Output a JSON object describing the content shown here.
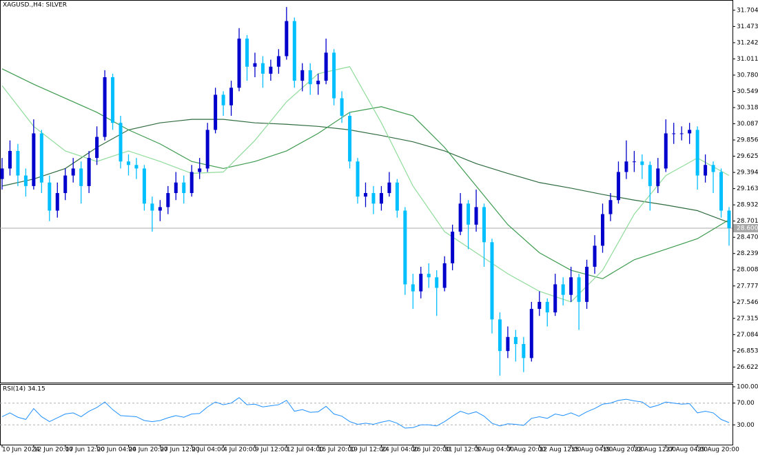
{
  "chart_data": [
    {
      "type": "candlestick",
      "title": "XAGUSD.,H4:  SILVER",
      "categories": [
        "10 Jun 2024",
        null,
        null,
        null,
        "12 Jun 20:00",
        null,
        null,
        null,
        "17 Jun 12:00",
        null,
        null,
        null,
        "20 Jun 04:00",
        null,
        null,
        null,
        "24 Jun 20:00",
        null,
        null,
        null,
        "27 Jun 12:00",
        null,
        null,
        null,
        "2 Jul 04:00",
        null,
        null,
        null,
        "4 Jul 20:00",
        null,
        null,
        null,
        "9 Jul 12:00",
        null,
        null,
        null,
        "12 Jul 04:00",
        null,
        null,
        null,
        "16 Jul 20:00",
        null,
        null,
        null,
        "19 Jul 12:00",
        null,
        null,
        null,
        "24 Jul 04:00",
        null,
        null,
        null,
        "26 Jul 20:00",
        null,
        null,
        null,
        "31 Jul 12:00",
        null,
        null,
        null,
        "5 Aug 04:00",
        null,
        null,
        null,
        "7 Aug 20:00",
        null,
        null,
        null,
        "12 Aug 12:00",
        null,
        null,
        null,
        "15 Aug 04:00",
        null,
        null,
        null,
        "19 Aug 20:00",
        null,
        null,
        null,
        "22 Aug 12:00",
        null,
        null,
        null,
        "27 Aug 04:00",
        null,
        null,
        null,
        "29 Aug 20:00",
        null,
        null,
        null,
        null
      ],
      "open": [
        29.3,
        29.45,
        29.7,
        29.35,
        29.2,
        29.95,
        29.25,
        28.85,
        29.1,
        29.35,
        29.45,
        29.2,
        29.6,
        29.9,
        30.75,
        30.1,
        29.55,
        29.5,
        29.45,
        28.95,
        28.85,
        28.9,
        29.1,
        29.25,
        29.1,
        29.4,
        29.45,
        30.0,
        30.5,
        30.35,
        30.6,
        31.3,
        30.9,
        30.95,
        30.8,
        30.9,
        31.05,
        31.55,
        30.7,
        30.85,
        30.65,
        30.7,
        31.1,
        30.45,
        30.2,
        29.55,
        29.05,
        29.1,
        28.95,
        29.1,
        29.25,
        28.85,
        27.8,
        27.7,
        27.95,
        27.9,
        27.75,
        28.1,
        28.55,
        28.95,
        28.65,
        28.9,
        28.4,
        27.3,
        26.85,
        27.05,
        26.95,
        26.75,
        27.45,
        27.55,
        27.4,
        27.8,
        27.65,
        27.9,
        27.55,
        28.05,
        28.35,
        28.8,
        29.0,
        29.4,
        29.55,
        29.55,
        29.5,
        29.2,
        29.45,
        29.95,
        29.95,
        29.95,
        30.0,
        29.35,
        29.5,
        29.4,
        28.85
      ],
      "high": [
        29.6,
        29.85,
        29.8,
        29.45,
        30.15,
        30.0,
        29.35,
        29.25,
        29.45,
        29.6,
        29.55,
        29.7,
        30.05,
        30.85,
        30.8,
        30.2,
        29.65,
        29.6,
        29.5,
        29.05,
        29.0,
        29.2,
        29.4,
        29.35,
        29.5,
        29.6,
        30.1,
        30.6,
        30.55,
        30.7,
        31.45,
        31.35,
        31.1,
        31.05,
        31.0,
        31.15,
        31.75,
        31.6,
        30.95,
        30.95,
        30.8,
        31.3,
        31.15,
        30.55,
        30.25,
        29.6,
        29.25,
        29.2,
        29.2,
        29.4,
        29.3,
        28.9,
        27.95,
        28.05,
        28.1,
        28.0,
        28.2,
        28.65,
        29.1,
        29.0,
        29.15,
        28.95,
        28.45,
        27.4,
        27.2,
        27.15,
        27.05,
        27.55,
        27.7,
        27.6,
        27.95,
        27.9,
        28.05,
        27.95,
        28.15,
        28.5,
        28.95,
        29.1,
        29.55,
        29.85,
        29.7,
        29.65,
        29.55,
        29.6,
        30.15,
        30.1,
        30.05,
        30.1,
        30.05,
        29.65,
        29.55,
        29.45,
        28.9
      ],
      "low": [
        29.15,
        29.35,
        29.2,
        29.05,
        29.15,
        29.1,
        28.7,
        28.75,
        29.0,
        29.25,
        28.95,
        29.1,
        29.5,
        29.85,
        30.0,
        29.45,
        29.35,
        29.3,
        28.85,
        28.55,
        28.7,
        28.8,
        29.0,
        28.95,
        29.05,
        29.3,
        29.4,
        29.95,
        30.2,
        30.2,
        30.55,
        30.7,
        30.75,
        30.6,
        30.7,
        30.8,
        31.0,
        30.6,
        30.55,
        30.5,
        30.5,
        30.65,
        30.35,
        30.1,
        29.45,
        28.95,
        28.9,
        28.8,
        28.85,
        29.05,
        28.75,
        27.65,
        27.45,
        27.6,
        27.75,
        27.35,
        27.7,
        28.0,
        28.5,
        28.3,
        28.55,
        28.05,
        27.1,
        26.5,
        26.75,
        26.7,
        26.55,
        26.7,
        27.35,
        27.2,
        27.35,
        27.5,
        27.55,
        27.15,
        27.45,
        27.95,
        28.25,
        28.7,
        28.95,
        29.3,
        29.4,
        29.3,
        28.85,
        29.1,
        29.4,
        29.8,
        29.85,
        29.8,
        29.15,
        29.25,
        29.1,
        28.75,
        28.35
      ],
      "close": [
        29.45,
        29.7,
        29.35,
        29.2,
        29.95,
        29.25,
        28.85,
        29.1,
        29.35,
        29.45,
        29.2,
        29.6,
        29.9,
        30.75,
        30.1,
        29.55,
        29.5,
        29.45,
        28.95,
        28.85,
        28.9,
        29.1,
        29.25,
        29.1,
        29.4,
        29.45,
        30.0,
        30.5,
        30.35,
        30.6,
        31.3,
        30.9,
        30.95,
        30.8,
        30.9,
        31.05,
        31.55,
        30.7,
        30.85,
        30.65,
        30.7,
        31.1,
        30.45,
        30.2,
        29.55,
        29.05,
        29.1,
        28.95,
        29.1,
        29.25,
        28.85,
        27.8,
        27.7,
        27.95,
        27.9,
        27.75,
        28.1,
        28.55,
        28.95,
        28.65,
        28.9,
        28.4,
        27.3,
        26.85,
        27.05,
        26.95,
        26.75,
        27.45,
        27.55,
        27.4,
        27.8,
        27.65,
        27.9,
        27.55,
        28.05,
        28.35,
        28.8,
        29.0,
        29.4,
        29.55,
        29.55,
        29.5,
        29.2,
        29.45,
        29.95,
        29.95,
        29.95,
        30.0,
        29.35,
        29.5,
        29.4,
        28.85,
        28.6
      ],
      "up_color": "#0000cd",
      "down_color": "#00bfff",
      "series": [
        {
          "color": "#2e6b3e",
          "x": [
            0,
            4,
            8,
            12,
            16,
            20,
            24,
            28,
            32,
            36,
            40,
            44,
            48,
            52,
            56,
            60,
            64,
            68,
            72,
            76,
            80,
            84,
            88,
            92
          ],
          "values": [
            29.2,
            29.3,
            29.45,
            29.75,
            30.0,
            30.1,
            30.15,
            30.15,
            30.1,
            30.08,
            30.05,
            30.0,
            29.92,
            29.83,
            29.7,
            29.52,
            29.38,
            29.25,
            29.17,
            29.08,
            29.0,
            28.93,
            28.85,
            28.68
          ]
        },
        {
          "color": "#3c9a4e",
          "x": [
            0,
            4,
            8,
            12,
            16,
            20,
            24,
            28,
            32,
            36,
            40,
            44,
            48,
            52,
            56,
            60,
            64,
            68,
            72,
            76,
            80,
            84,
            88,
            92
          ],
          "values": [
            30.87,
            30.65,
            30.45,
            30.25,
            30.0,
            29.8,
            29.55,
            29.45,
            29.55,
            29.7,
            29.95,
            30.25,
            30.33,
            30.2,
            29.75,
            29.2,
            28.65,
            28.25,
            28.0,
            27.88,
            28.15,
            28.3,
            28.45,
            28.72
          ]
        },
        {
          "color": "#8fdc9a",
          "x": [
            0,
            4,
            8,
            12,
            16,
            20,
            24,
            28,
            32,
            36,
            40,
            44,
            48,
            52,
            56,
            60,
            64,
            68,
            72,
            76,
            80,
            84,
            88,
            92
          ],
          "values": [
            30.63,
            30.05,
            29.7,
            29.55,
            29.7,
            29.55,
            29.38,
            29.4,
            29.85,
            30.4,
            30.8,
            30.9,
            30.1,
            29.2,
            28.55,
            28.25,
            27.95,
            27.7,
            27.55,
            28.0,
            28.8,
            29.35,
            29.6,
            29.35
          ]
        }
      ],
      "ylim": [
        26.4,
        31.85
      ],
      "yticks": [
        31.704,
        31.473,
        31.242,
        31.011,
        {
          "value": 30.78,
          "label": "30.780"
        },
        30.549,
        30.318,
        30.087,
        29.856,
        29.625,
        29.394,
        29.163,
        28.932,
        28.701,
        {
          "value": 28.47,
          "label": "28.470"
        },
        28.239,
        28.008,
        27.777,
        27.546,
        27.315,
        27.084,
        26.853,
        26.622
      ],
      "last_price": {
        "value": 28.6,
        "label": "28.600"
      }
    },
    {
      "type": "line",
      "title": "RSI(14) 34.15",
      "series": [
        {
          "color": "#1e90ff",
          "values": [
            45,
            52,
            44,
            40,
            60,
            45,
            36,
            43,
            50,
            52,
            45,
            55,
            62,
            72,
            58,
            47,
            46,
            45,
            38,
            36,
            38,
            43,
            47,
            44,
            50,
            51,
            63,
            72,
            67,
            70,
            80,
            67,
            68,
            63,
            65,
            67,
            75,
            55,
            58,
            53,
            54,
            64,
            50,
            46,
            36,
            31,
            33,
            31,
            35,
            38,
            33,
            24,
            25,
            30,
            30,
            28,
            36,
            46,
            55,
            50,
            54,
            46,
            33,
            28,
            32,
            31,
            29,
            42,
            45,
            42,
            50,
            47,
            52,
            46,
            54,
            60,
            68,
            70,
            75,
            77,
            74,
            72,
            62,
            66,
            72,
            70,
            68,
            69,
            52,
            55,
            52,
            40,
            34.15
          ]
        }
      ],
      "ylim": [
        0,
        100
      ],
      "yticks": [
        {
          "value": 100,
          "label": "100.00"
        },
        {
          "value": 70,
          "label": "70.00"
        },
        {
          "value": 30,
          "label": "30.00"
        }
      ],
      "levels": [
        70,
        30
      ]
    }
  ]
}
